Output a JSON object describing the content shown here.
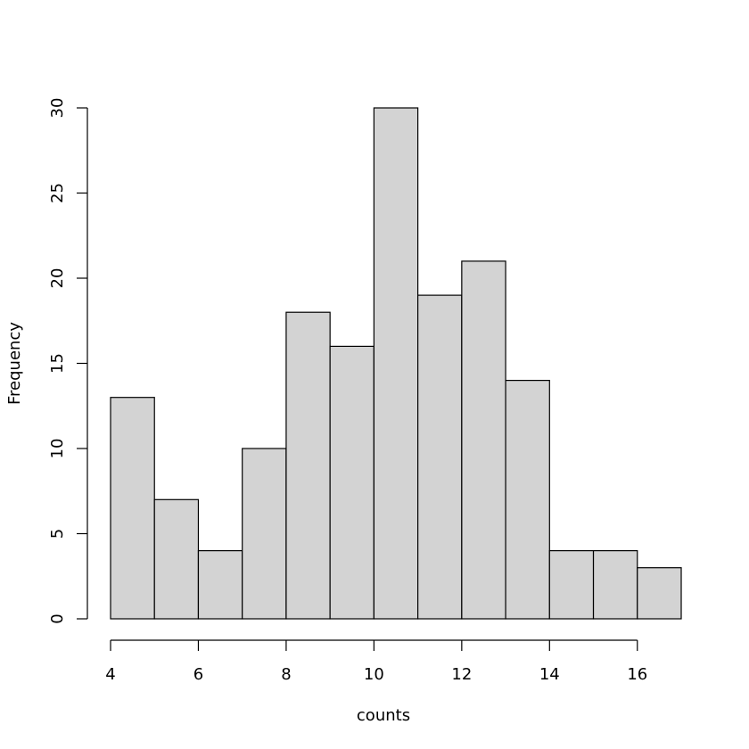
{
  "chart_data": {
    "type": "bar",
    "subtype": "histogram",
    "title": "",
    "xlabel": "counts",
    "ylabel": "Frequency",
    "bins": [
      {
        "x0": 4,
        "x1": 5,
        "count": 13
      },
      {
        "x0": 5,
        "x1": 6,
        "count": 7
      },
      {
        "x0": 6,
        "x1": 7,
        "count": 4
      },
      {
        "x0": 7,
        "x1": 8,
        "count": 10
      },
      {
        "x0": 8,
        "x1": 9,
        "count": 18
      },
      {
        "x0": 9,
        "x1": 10,
        "count": 16
      },
      {
        "x0": 10,
        "x1": 11,
        "count": 30
      },
      {
        "x0": 11,
        "x1": 12,
        "count": 19
      },
      {
        "x0": 12,
        "x1": 13,
        "count": 21
      },
      {
        "x0": 13,
        "x1": 14,
        "count": 14
      },
      {
        "x0": 14,
        "x1": 15,
        "count": 4
      },
      {
        "x0": 15,
        "x1": 16,
        "count": 4
      },
      {
        "x0": 16,
        "x1": 17,
        "count": 3
      }
    ],
    "xlim": [
      4,
      17
    ],
    "ylim": [
      0,
      30
    ],
    "xticks": [
      4,
      6,
      8,
      10,
      12,
      14,
      16
    ],
    "yticks": [
      0,
      5,
      10,
      15,
      20,
      25,
      30
    ],
    "grid": false,
    "legend": "none",
    "bar_fill": "#d3d3d3",
    "bar_stroke": "#000000"
  }
}
